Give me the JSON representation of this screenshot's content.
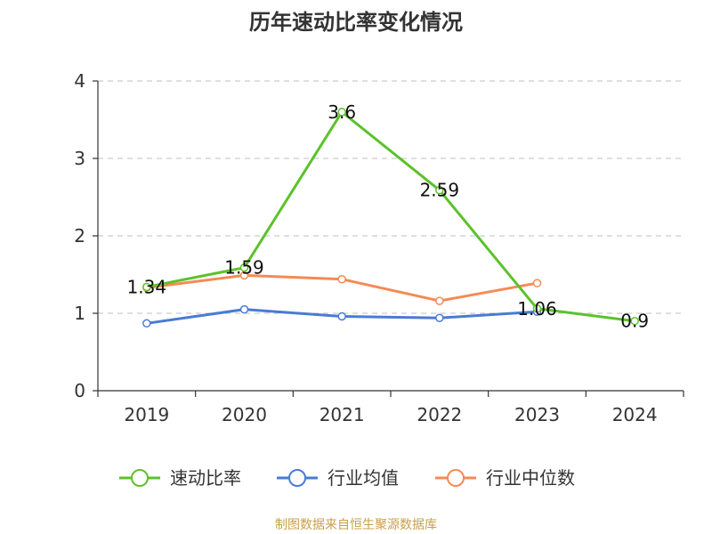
{
  "chart_data": {
    "type": "line",
    "title": "历年速动比率变化情况",
    "categories": [
      "2019",
      "2020",
      "2021",
      "2022",
      "2023",
      "2024"
    ],
    "ylim": [
      0,
      4
    ],
    "yticks": [
      "0",
      "1",
      "2",
      "3",
      "4"
    ],
    "grid": true,
    "legend_position": "bottom",
    "series": [
      {
        "name": "速动比率",
        "color": "#5cc22b",
        "values": [
          1.34,
          1.59,
          3.6,
          2.59,
          1.06,
          0.9
        ],
        "labels": [
          "1.34",
          "1.59",
          "3.6",
          "2.59",
          "1.06",
          "0.9"
        ]
      },
      {
        "name": "行业均值",
        "color": "#4a7bd4",
        "values": [
          0.87,
          1.05,
          0.96,
          0.94,
          1.02,
          null
        ],
        "labels": []
      },
      {
        "name": "行业中位数",
        "color": "#f58a55",
        "values": [
          1.33,
          1.49,
          1.44,
          1.16,
          1.39,
          null
        ],
        "labels": []
      }
    ]
  },
  "source_text": "制图数据来自恒生聚源数据库"
}
